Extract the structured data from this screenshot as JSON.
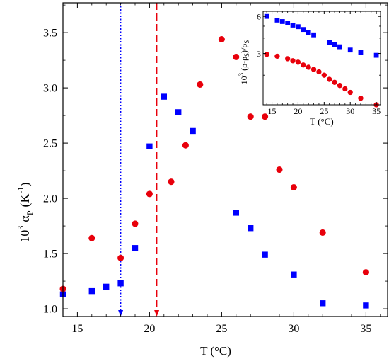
{
  "chart_data": [
    {
      "type": "scatter",
      "title": "",
      "xlabel": "T (°C)",
      "ylabel_sup": "3",
      "ylabel_main": "α",
      "ylabel_sub": "P",
      "ylabel_unit": "(K",
      "ylabel_unit_sup": "-1",
      "ylabel_close": ")",
      "ylabel_prefix": "10",
      "xlim": [
        14,
        36.5
      ],
      "ylim": [
        0.93,
        3.77
      ],
      "xticks": [
        15,
        20,
        25,
        30,
        35
      ],
      "yticks": [
        1.0,
        1.5,
        2.0,
        2.5,
        3.0,
        3.5
      ],
      "xtick_labels": [
        "15",
        "20",
        "25",
        "30",
        "35"
      ],
      "ytick_labels": [
        "1.0",
        "1.5",
        "2.0",
        "2.5",
        "3.0",
        "3.5"
      ],
      "grid": false,
      "series": [
        {
          "marker": "square",
          "color": "#0000ff",
          "x": [
            14,
            16,
            17,
            18,
            19,
            20,
            21,
            22,
            23,
            26,
            27,
            28,
            30,
            32,
            35
          ],
          "y": [
            1.13,
            1.16,
            1.2,
            1.23,
            1.55,
            2.47,
            2.92,
            2.78,
            2.61,
            1.87,
            1.73,
            1.49,
            1.31,
            1.05,
            1.03
          ]
        },
        {
          "marker": "circle",
          "color": "#e8000b",
          "x": [
            14,
            16,
            18,
            19,
            20,
            21.5,
            22.5,
            23.5,
            25,
            26,
            27,
            28,
            29,
            30,
            32,
            35
          ],
          "y": [
            1.18,
            1.64,
            1.46,
            1.77,
            2.04,
            2.15,
            2.48,
            3.03,
            3.44,
            3.28,
            2.74,
            2.74,
            2.26,
            2.1,
            1.69,
            1.33
          ]
        }
      ],
      "vlines": [
        {
          "x": 18,
          "color": "#0000ff",
          "style": "dotted",
          "arrow": "down"
        },
        {
          "x": 20.5,
          "color": "#e8000b",
          "style": "dashed",
          "arrow": "down"
        }
      ]
    },
    {
      "type": "scatter",
      "inset": true,
      "title": "",
      "xlabel": "T (°C)",
      "ylabel_prefix": "10",
      "ylabel_sup": "3",
      "ylabel_main": "(ρ-ρ",
      "ylabel_sub1": "S",
      "ylabel_mid": ")/ρ",
      "ylabel_sub2": "S",
      "xlim": [
        13.3,
        35.8
      ],
      "ylim": [
        1.15,
        6.6
      ],
      "yscale": "log",
      "xticks": [
        15,
        20,
        25,
        30,
        35
      ],
      "yticks": [
        3,
        6
      ],
      "xtick_labels": [
        "15",
        "20",
        "25",
        "30",
        "35"
      ],
      "ytick_labels": [
        "3",
        "6"
      ],
      "grid": false,
      "series": [
        {
          "marker": "square",
          "color": "#0000ff",
          "x": [
            14,
            16,
            17,
            18,
            19,
            20,
            21,
            22,
            23,
            26,
            27,
            28,
            30,
            32,
            35
          ],
          "y": [
            6.0,
            5.6,
            5.45,
            5.3,
            5.1,
            4.95,
            4.7,
            4.45,
            4.25,
            3.7,
            3.55,
            3.4,
            3.2,
            3.05,
            2.9
          ]
        },
        {
          "marker": "circle",
          "color": "#e8000b",
          "x": [
            14,
            16,
            18,
            19,
            20,
            21,
            22,
            23,
            24,
            25,
            26,
            27,
            28,
            29,
            30,
            32,
            35
          ],
          "y": [
            2.95,
            2.85,
            2.72,
            2.62,
            2.55,
            2.42,
            2.32,
            2.23,
            2.13,
            2.0,
            1.85,
            1.75,
            1.65,
            1.55,
            1.45,
            1.3,
            1.15
          ]
        }
      ]
    }
  ]
}
